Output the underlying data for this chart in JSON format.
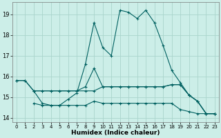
{
  "xlabel": "Humidex (Indice chaleur)",
  "background_color": "#cceee8",
  "grid_color": "#aad4cc",
  "line_color": "#006060",
  "xlim": [
    -0.5,
    23.5
  ],
  "ylim": [
    13.8,
    19.6
  ],
  "yticks": [
    14,
    15,
    16,
    17,
    18,
    19
  ],
  "xticks": [
    0,
    1,
    2,
    3,
    4,
    5,
    6,
    7,
    8,
    9,
    10,
    11,
    12,
    13,
    14,
    15,
    16,
    17,
    18,
    19,
    20,
    21,
    22,
    23
  ],
  "line1_x": [
    0,
    1,
    2,
    3,
    4,
    5,
    6,
    7,
    8,
    9,
    10,
    11,
    12,
    13,
    14,
    15,
    16,
    17,
    18,
    19,
    20,
    21,
    22,
    23
  ],
  "line1_y": [
    15.8,
    15.8,
    15.3,
    14.7,
    14.6,
    14.6,
    14.9,
    15.2,
    16.6,
    18.6,
    17.4,
    17.0,
    19.2,
    19.1,
    18.8,
    19.2,
    18.6,
    17.5,
    16.3,
    15.7,
    15.1,
    14.8,
    14.2,
    14.2
  ],
  "line2_x": [
    0,
    1,
    2,
    3,
    4,
    5,
    6,
    7,
    8,
    9,
    10,
    11,
    12,
    13,
    14,
    15,
    16,
    17,
    18,
    19,
    20,
    21,
    22,
    23
  ],
  "line2_y": [
    15.8,
    15.8,
    15.3,
    15.3,
    15.3,
    15.3,
    15.3,
    15.3,
    15.5,
    16.4,
    15.5,
    15.5,
    15.5,
    15.5,
    15.5,
    15.5,
    15.5,
    15.5,
    15.6,
    15.6,
    15.1,
    14.8,
    14.2,
    14.2
  ],
  "line3_x": [
    2,
    3,
    4,
    5,
    6,
    7,
    8,
    9,
    10,
    11,
    12,
    13,
    14,
    15,
    16,
    17,
    18,
    19,
    20,
    21,
    22,
    23
  ],
  "line3_y": [
    15.3,
    15.3,
    15.3,
    15.3,
    15.3,
    15.3,
    15.3,
    15.3,
    15.5,
    15.5,
    15.5,
    15.5,
    15.5,
    15.5,
    15.5,
    15.5,
    15.6,
    15.6,
    15.1,
    14.8,
    14.2,
    14.2
  ],
  "line4_x": [
    2,
    3,
    4,
    5,
    6,
    7,
    8,
    9,
    10,
    11,
    12,
    13,
    14,
    15,
    16,
    17,
    18,
    19,
    20,
    21,
    22,
    23
  ],
  "line4_y": [
    14.7,
    14.6,
    14.6,
    14.6,
    14.6,
    14.6,
    14.6,
    14.8,
    14.7,
    14.7,
    14.7,
    14.7,
    14.7,
    14.7,
    14.7,
    14.7,
    14.7,
    14.4,
    14.3,
    14.2,
    14.2,
    14.2
  ],
  "marker": "+"
}
